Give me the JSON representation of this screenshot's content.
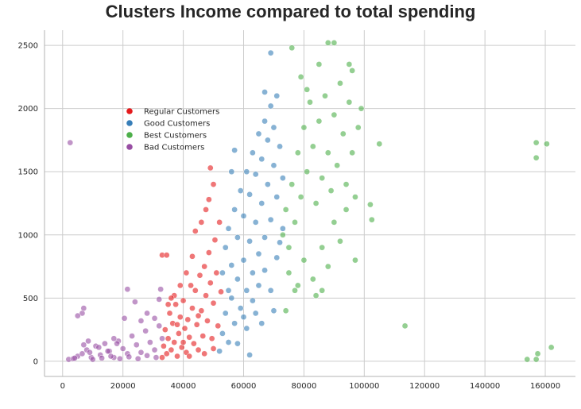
{
  "chart_data": {
    "type": "scatter",
    "title": "Clusters Income compared to total spending",
    "xlabel": "",
    "ylabel": "",
    "xlim": [
      -6000,
      170000
    ],
    "ylim": [
      -120,
      2620
    ],
    "x_ticks": [
      0,
      20000,
      40000,
      60000,
      80000,
      100000,
      120000,
      140000,
      160000
    ],
    "y_ticks": [
      0,
      500,
      1000,
      1500,
      2000,
      2500
    ],
    "grid": true,
    "legend_position": "upper-left",
    "series": [
      {
        "name": "Regular Customers",
        "color": "#e41a1c",
        "points": [
          [
            33000,
            30
          ],
          [
            33500,
            120
          ],
          [
            34000,
            250
          ],
          [
            34500,
            60
          ],
          [
            35000,
            180
          ],
          [
            35500,
            380
          ],
          [
            36000,
            90
          ],
          [
            36500,
            300
          ],
          [
            37000,
            150
          ],
          [
            37500,
            450
          ],
          [
            38000,
            40
          ],
          [
            38500,
            220
          ],
          [
            39000,
            350
          ],
          [
            39500,
            110
          ],
          [
            40000,
            480
          ],
          [
            40500,
            260
          ],
          [
            41000,
            70
          ],
          [
            41500,
            330
          ],
          [
            42000,
            190
          ],
          [
            42500,
            600
          ],
          [
            43000,
            420
          ],
          [
            43500,
            140
          ],
          [
            44000,
            560
          ],
          [
            44500,
            290
          ],
          [
            45000,
            90
          ],
          [
            45500,
            680
          ],
          [
            46000,
            400
          ],
          [
            46500,
            200
          ],
          [
            47000,
            750
          ],
          [
            47500,
            520
          ],
          [
            48000,
            320
          ],
          [
            48500,
            860
          ],
          [
            49000,
            620
          ],
          [
            49500,
            180
          ],
          [
            50000,
            460
          ],
          [
            50500,
            960
          ],
          [
            51000,
            700
          ],
          [
            51500,
            280
          ],
          [
            52000,
            1100
          ],
          [
            52500,
            550
          ],
          [
            35000,
            450
          ],
          [
            37000,
            520
          ],
          [
            39000,
            600
          ],
          [
            41000,
            700
          ],
          [
            43000,
            830
          ],
          [
            44000,
            1030
          ],
          [
            46000,
            1100
          ],
          [
            47500,
            1200
          ],
          [
            48500,
            1280
          ],
          [
            49000,
            1530
          ],
          [
            50000,
            1400
          ],
          [
            33000,
            840
          ],
          [
            34500,
            840
          ],
          [
            36000,
            500
          ],
          [
            38000,
            290
          ],
          [
            40000,
            150
          ],
          [
            42000,
            40
          ],
          [
            45000,
            360
          ],
          [
            47000,
            60
          ],
          [
            50000,
            100
          ]
        ]
      },
      {
        "name": "Good Customers",
        "color": "#377eb8",
        "points": [
          [
            52000,
            80
          ],
          [
            53000,
            220
          ],
          [
            54000,
            380
          ],
          [
            55000,
            150
          ],
          [
            56000,
            500
          ],
          [
            57000,
            300
          ],
          [
            58000,
            650
          ],
          [
            59000,
            420
          ],
          [
            60000,
            800
          ],
          [
            61000,
            560
          ],
          [
            62000,
            950
          ],
          [
            63000,
            700
          ],
          [
            64000,
            1100
          ],
          [
            65000,
            850
          ],
          [
            66000,
            1250
          ],
          [
            67000,
            980
          ],
          [
            68000,
            1400
          ],
          [
            69000,
            1120
          ],
          [
            70000,
            1550
          ],
          [
            71000,
            1300
          ],
          [
            72000,
            1700
          ],
          [
            73000,
            1450
          ],
          [
            54000,
            900
          ],
          [
            55000,
            1050
          ],
          [
            56000,
            760
          ],
          [
            57000,
            1200
          ],
          [
            58000,
            980
          ],
          [
            59000,
            1350
          ],
          [
            60000,
            1150
          ],
          [
            61000,
            1500
          ],
          [
            62000,
            1320
          ],
          [
            63000,
            1650
          ],
          [
            64000,
            1480
          ],
          [
            65000,
            1800
          ],
          [
            66000,
            1600
          ],
          [
            67000,
            1900
          ],
          [
            68000,
            1750
          ],
          [
            69000,
            2020
          ],
          [
            70000,
            1850
          ],
          [
            71000,
            2100
          ],
          [
            60000,
            350
          ],
          [
            63000,
            480
          ],
          [
            65000,
            600
          ],
          [
            67000,
            720
          ],
          [
            69000,
            560
          ],
          [
            71000,
            820
          ],
          [
            72000,
            940
          ],
          [
            58000,
            140
          ],
          [
            61000,
            260
          ],
          [
            64000,
            380
          ],
          [
            69000,
            2440
          ],
          [
            67000,
            2130
          ],
          [
            57000,
            1670
          ],
          [
            56000,
            1500
          ],
          [
            73000,
            1050
          ],
          [
            70000,
            400
          ],
          [
            66000,
            300
          ],
          [
            62000,
            50
          ],
          [
            53000,
            700
          ],
          [
            55000,
            560
          ]
        ]
      },
      {
        "name": "Best Customers",
        "color": "#4daf4a",
        "points": [
          [
            73000,
            1000
          ],
          [
            74000,
            1200
          ],
          [
            75000,
            900
          ],
          [
            76000,
            1400
          ],
          [
            77000,
            1100
          ],
          [
            78000,
            1650
          ],
          [
            79000,
            1300
          ],
          [
            80000,
            1850
          ],
          [
            81000,
            1500
          ],
          [
            82000,
            2050
          ],
          [
            83000,
            1700
          ],
          [
            84000,
            1250
          ],
          [
            85000,
            1900
          ],
          [
            86000,
            1450
          ],
          [
            87000,
            2100
          ],
          [
            88000,
            1650
          ],
          [
            89000,
            1350
          ],
          [
            90000,
            1950
          ],
          [
            91000,
            1550
          ],
          [
            92000,
            2200
          ],
          [
            93000,
            1800
          ],
          [
            94000,
            1400
          ],
          [
            95000,
            2050
          ],
          [
            96000,
            1650
          ],
          [
            97000,
            1300
          ],
          [
            98000,
            1850
          ],
          [
            75000,
            700
          ],
          [
            77000,
            560
          ],
          [
            80000,
            800
          ],
          [
            83000,
            650
          ],
          [
            86000,
            900
          ],
          [
            88000,
            750
          ],
          [
            90000,
            1100
          ],
          [
            92000,
            950
          ],
          [
            94000,
            1200
          ],
          [
            79000,
            2250
          ],
          [
            81000,
            2150
          ],
          [
            85000,
            2350
          ],
          [
            88000,
            2520
          ],
          [
            90000,
            2520
          ],
          [
            76000,
            2480
          ],
          [
            95000,
            2350
          ],
          [
            96000,
            2300
          ],
          [
            99000,
            2000
          ],
          [
            105000,
            1720
          ],
          [
            102000,
            1240
          ],
          [
            102500,
            1120
          ],
          [
            113500,
            280
          ],
          [
            157000,
            1730
          ],
          [
            160500,
            1720
          ],
          [
            157000,
            1610
          ],
          [
            162000,
            110
          ],
          [
            157500,
            60
          ],
          [
            154000,
            15
          ],
          [
            157000,
            15
          ],
          [
            97000,
            800
          ],
          [
            84000,
            520
          ],
          [
            86000,
            560
          ],
          [
            74000,
            400
          ],
          [
            78000,
            600
          ]
        ]
      },
      {
        "name": "Bad Customers",
        "color": "#984ea3",
        "points": [
          [
            2000,
            15
          ],
          [
            3500,
            20
          ],
          [
            5000,
            40
          ],
          [
            6500,
            60
          ],
          [
            8000,
            90
          ],
          [
            9500,
            30
          ],
          [
            11000,
            120
          ],
          [
            12500,
            50
          ],
          [
            14000,
            140
          ],
          [
            15500,
            80
          ],
          [
            17000,
            30
          ],
          [
            18500,
            160
          ],
          [
            20000,
            100
          ],
          [
            21500,
            60
          ],
          [
            23000,
            200
          ],
          [
            24500,
            130
          ],
          [
            26000,
            70
          ],
          [
            27500,
            240
          ],
          [
            29000,
            150
          ],
          [
            30500,
            90
          ],
          [
            32000,
            280
          ],
          [
            33000,
            180
          ],
          [
            10000,
            15
          ],
          [
            13000,
            25
          ],
          [
            16000,
            40
          ],
          [
            19000,
            20
          ],
          [
            22000,
            35
          ],
          [
            25000,
            20
          ],
          [
            28000,
            45
          ],
          [
            31000,
            30
          ],
          [
            7000,
            130
          ],
          [
            8500,
            160
          ],
          [
            6500,
            380
          ],
          [
            5000,
            360
          ],
          [
            7000,
            420
          ],
          [
            28000,
            380
          ],
          [
            30500,
            340
          ],
          [
            26000,
            320
          ],
          [
            24000,
            470
          ],
          [
            32000,
            490
          ],
          [
            20500,
            340
          ],
          [
            21500,
            570
          ],
          [
            32500,
            570
          ],
          [
            17000,
            180
          ],
          [
            18000,
            140
          ],
          [
            12000,
            110
          ],
          [
            9000,
            70
          ],
          [
            4000,
            25
          ],
          [
            2500,
            1730
          ],
          [
            15000,
            80
          ]
        ]
      }
    ]
  }
}
